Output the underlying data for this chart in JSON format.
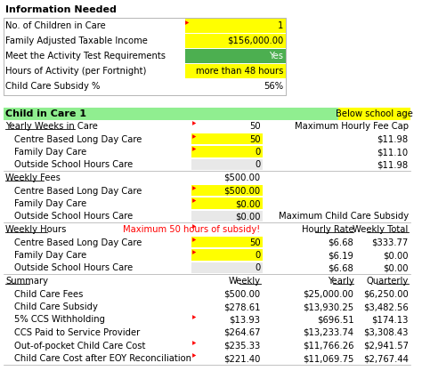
{
  "title": "Information Needed",
  "info_rows": [
    {
      "label": "No. of Children in Care",
      "value": "1",
      "bg": "#ffff00"
    },
    {
      "label": "Family Adjusted Taxable Income",
      "value": "$156,000.00",
      "bg": "#ffff00"
    },
    {
      "label": "Meet the Activity Test Requirements",
      "value": "Yes",
      "bg": "#4caf50"
    },
    {
      "label": "Hours of Activity (per Fortnight)",
      "value": "more than 48 hours",
      "bg": "#ffff00"
    },
    {
      "label": "Child Care Subsidy %",
      "value": "56%",
      "bg": "#ffffff"
    }
  ],
  "child_header": "Child in Care 1",
  "child_tag": "Below school age",
  "child_tag_bg": "#ffff00",
  "child_header_bg": "#90ee90",
  "sections": [
    {
      "label": "Yearly Weeks in Care",
      "underline": true,
      "value": "50",
      "value_bg": null,
      "right_label": "Maximum Hourly Fee Cap",
      "indent": false,
      "red_arrow": true
    },
    {
      "label": "Centre Based Long Day Care",
      "underline": false,
      "value": "50",
      "value_bg": "#ffff00",
      "right_value": "$11.98",
      "indent": true,
      "red_arrow": true
    },
    {
      "label": "Family Day Care",
      "underline": false,
      "value": "0",
      "value_bg": "#ffff00",
      "right_value": "$11.10",
      "indent": true,
      "red_arrow": true
    },
    {
      "label": "Outside School Hours Care",
      "underline": false,
      "value": "0",
      "value_bg": "#e8e8e8",
      "right_value": "$11.98",
      "indent": true,
      "red_arrow": false
    },
    {
      "label": "Weekly Fees",
      "underline": true,
      "value": "$500.00",
      "value_bg": null,
      "right_label": "",
      "indent": false,
      "red_arrow": false
    },
    {
      "label": "Centre Based Long Day Care",
      "underline": false,
      "value": "$500.00",
      "value_bg": "#ffff00",
      "indent": true,
      "red_arrow": true
    },
    {
      "label": "Family Day Care",
      "underline": false,
      "value": "$0.00",
      "value_bg": "#ffff00",
      "indent": true,
      "red_arrow": true
    },
    {
      "label": "Outside School Hours Care",
      "underline": false,
      "value": "$0.00",
      "value_bg": "#e8e8e8",
      "right_label": "Maximum Child Care Subsidy",
      "indent": true,
      "red_arrow": false
    },
    {
      "label": "Weekly Hours",
      "underline": true,
      "value": "Maximum 50 hours of subsidy!",
      "value_color": "#ff0000",
      "value_bg": null,
      "col3_label": "Hourly Rate",
      "col4_label": "Weekly Total",
      "indent": false,
      "red_arrow": true
    },
    {
      "label": "Centre Based Long Day Care",
      "underline": false,
      "value": "50",
      "value_bg": "#ffff00",
      "col3": "$6.68",
      "col4": "$333.77",
      "indent": true,
      "red_arrow": true
    },
    {
      "label": "Family Day Care",
      "underline": false,
      "value": "0",
      "value_bg": "#ffff00",
      "col3": "$6.19",
      "col4": "$0.00",
      "indent": true,
      "red_arrow": true
    },
    {
      "label": "Outside School Hours Care",
      "underline": false,
      "value": "0",
      "value_bg": "#e8e8e8",
      "col3": "$6.68",
      "col4": "$0.00",
      "indent": true,
      "red_arrow": false
    },
    {
      "label": "Summary",
      "underline": true,
      "value": "Weekly",
      "value_underline": true,
      "col3": "Yearly",
      "col3_underline": true,
      "col4": "Quarterly",
      "col4_underline": true,
      "indent": false,
      "red_arrow": false,
      "is_summary_header": true
    },
    {
      "label": "Child Care Fees",
      "underline": false,
      "value": "$500.00",
      "col3": "$25,000.00",
      "col4": "$6,250.00",
      "indent": true,
      "red_arrow": false
    },
    {
      "label": "Child Care Subsidy",
      "underline": false,
      "value": "$278.61",
      "col3": "$13,930.25",
      "col4": "$3,482.56",
      "indent": true,
      "red_arrow": false
    },
    {
      "label": "5% CCS Withholding",
      "underline": false,
      "value": "$13.93",
      "col3": "$696.51",
      "col4": "$174.13",
      "indent": true,
      "red_arrow": true
    },
    {
      "label": "CCS Paid to Service Provider",
      "underline": false,
      "value": "$264.67",
      "col3": "$13,233.74",
      "col4": "$3,308.43",
      "indent": true,
      "red_arrow": false
    },
    {
      "label": "Out-of-pocket Child Care Cost",
      "underline": false,
      "value": "$235.33",
      "col3": "$11,766.26",
      "col4": "$2,941.57",
      "indent": true,
      "red_arrow": true
    },
    {
      "label": "Child Care Cost after EOY Reconciliation",
      "underline": false,
      "value": "$221.40",
      "col3": "$11,069.75",
      "col4": "$2,767.44",
      "indent": true,
      "red_arrow": true
    }
  ],
  "bg_color": "#ffffff",
  "text_color": "#000000",
  "font_size": 7.2,
  "header_font_size": 8.0
}
